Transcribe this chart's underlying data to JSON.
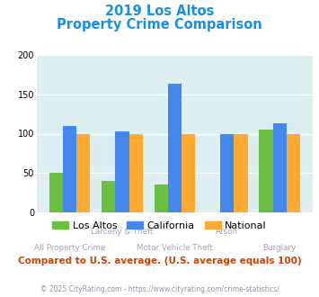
{
  "title_line1": "2019 Los Altos",
  "title_line2": "Property Crime Comparison",
  "los_altos": [
    50,
    40,
    35,
    0,
    105
  ],
  "california": [
    110,
    103,
    163,
    100,
    113
  ],
  "national": [
    100,
    100,
    100,
    100,
    100
  ],
  "color_los_altos": "#6abf40",
  "color_california": "#4488ee",
  "color_national": "#ffaa33",
  "ylim": [
    0,
    200
  ],
  "yticks": [
    0,
    50,
    100,
    150,
    200
  ],
  "background_color": "#ddeef0",
  "fig_background": "#ffffff",
  "title_color": "#1a8fe3",
  "label_color": "#aaa0bb",
  "footnote": "Compared to U.S. average. (U.S. average equals 100)",
  "footnote_color": "#cc4400",
  "copyright": "© 2025 CityRating.com - https://www.cityrating.com/crime-statistics/",
  "copyright_color": "#8899aa",
  "legend_labels": [
    "Los Altos",
    "California",
    "National"
  ],
  "top_row_labels": {
    "1": "Larceny & Theft",
    "3": "Arson"
  },
  "bottom_row_labels": {
    "0": "All Property Crime",
    "2": "Motor Vehicle Theft",
    "4": "Burglary"
  }
}
